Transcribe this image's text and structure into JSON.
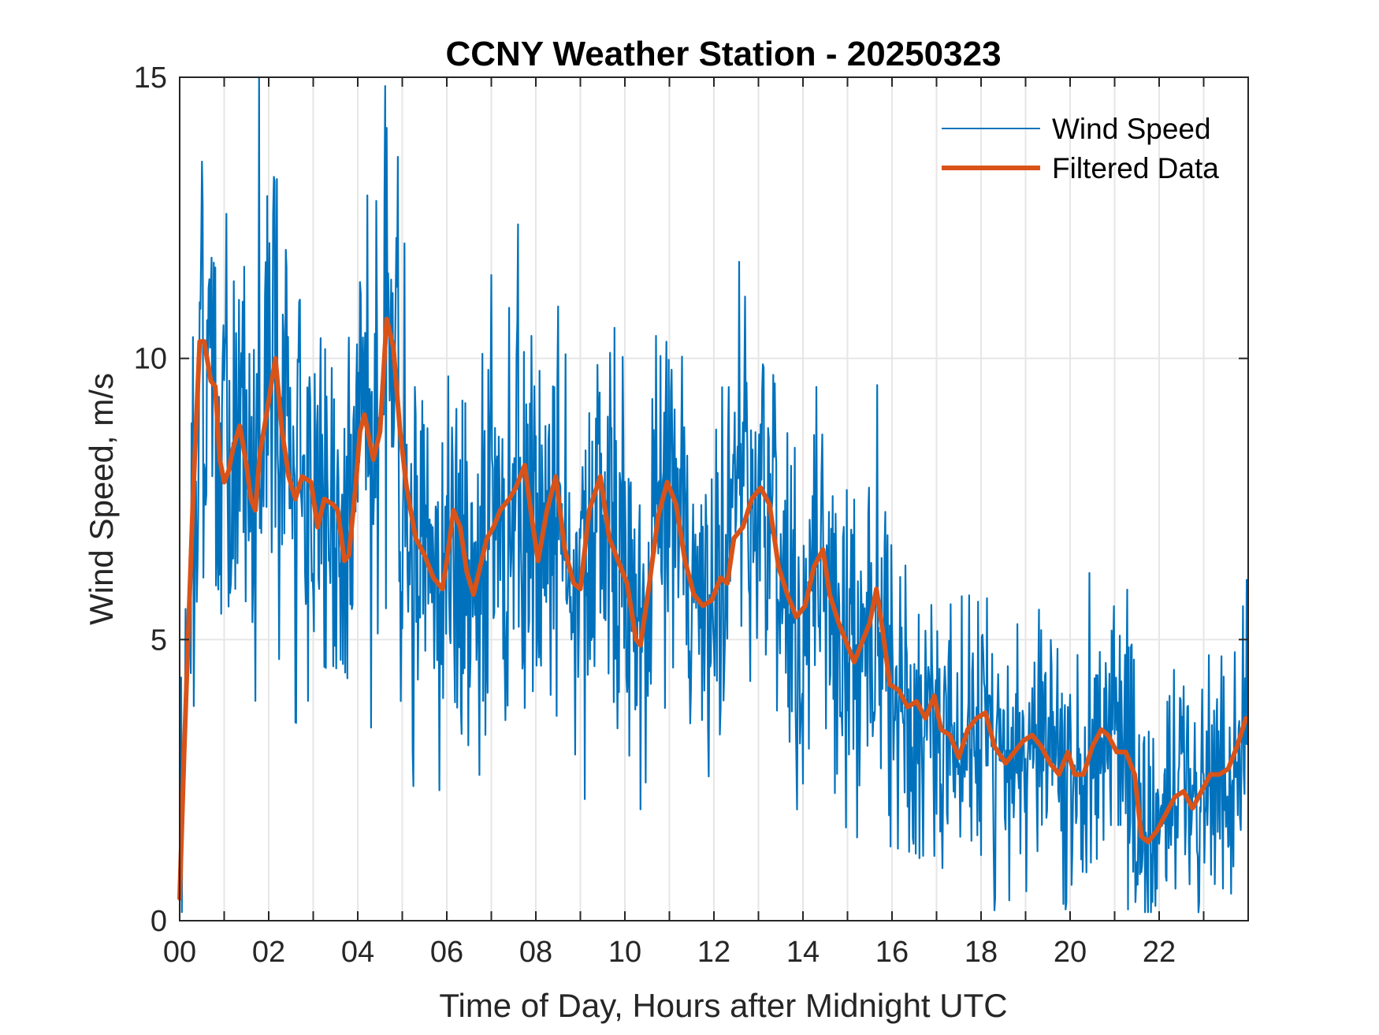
{
  "chart_data": {
    "type": "line",
    "title": "CCNY Weather Station - 20250323",
    "xlabel": "Time of Day, Hours after Midnight UTC",
    "ylabel": "Wind Speed, m/s",
    "xlim": [
      0,
      24
    ],
    "ylim": [
      0,
      15
    ],
    "x_ticks": [
      0,
      2,
      4,
      6,
      8,
      10,
      12,
      14,
      16,
      18,
      20,
      22
    ],
    "x_tick_labels": [
      "00",
      "02",
      "04",
      "06",
      "08",
      "10",
      "12",
      "14",
      "16",
      "18",
      "20",
      "22"
    ],
    "x_minor_ticks_every": 1,
    "y_ticks": [
      0,
      5,
      10,
      15
    ],
    "y_tick_labels": [
      "0",
      "5",
      "10",
      "15"
    ],
    "grid": true,
    "legend": {
      "placement": "top-right",
      "entries": [
        "Wind Speed",
        "Filtered Data"
      ]
    },
    "colors": {
      "wind_speed": "#0072BD",
      "filtered": "#D95319",
      "grid": "#e6e6e6",
      "axis": "#262626"
    },
    "series": [
      {
        "name": "Wind Speed",
        "note": "raw 1-minute samples, noisy about the filtered trend (approx. ±3 m/s); notable peaks ~15.0 at 01.8h, ~14.1 at 4.6h, ~11.1 at 12.7h",
        "noise_amplitude": 2.6,
        "peaks": [
          [
            1.78,
            15.0
          ],
          [
            4.65,
            14.1
          ],
          [
            0.5,
            13.5
          ],
          [
            12.7,
            11.1
          ],
          [
            7.4,
            10.9
          ],
          [
            10.7,
            10.4
          ],
          [
            21.3,
            0.2
          ],
          [
            19.9,
            0.2
          ]
        ]
      },
      {
        "name": "Filtered Data",
        "x": [
          0.0,
          0.1,
          0.3,
          0.45,
          0.55,
          0.7,
          0.8,
          0.9,
          1.0,
          1.1,
          1.2,
          1.35,
          1.5,
          1.6,
          1.7,
          1.8,
          1.95,
          2.15,
          2.3,
          2.45,
          2.6,
          2.75,
          2.95,
          3.1,
          3.25,
          3.45,
          3.55,
          3.7,
          3.8,
          3.95,
          4.05,
          4.15,
          4.25,
          4.35,
          4.5,
          4.65,
          4.8,
          4.95,
          5.1,
          5.3,
          5.5,
          5.7,
          5.9,
          6.0,
          6.15,
          6.3,
          6.45,
          6.6,
          6.75,
          6.9,
          7.05,
          7.2,
          7.4,
          7.55,
          7.75,
          7.9,
          8.05,
          8.25,
          8.45,
          8.65,
          8.85,
          9.0,
          9.2,
          9.45,
          9.65,
          9.85,
          10.05,
          10.25,
          10.35,
          10.55,
          10.75,
          10.95,
          11.15,
          11.35,
          11.55,
          11.75,
          11.95,
          12.15,
          12.3,
          12.45,
          12.65,
          12.85,
          13.05,
          13.25,
          13.45,
          13.65,
          13.85,
          14.05,
          14.25,
          14.45,
          14.6,
          14.8,
          15.0,
          15.15,
          15.35,
          15.5,
          15.65,
          15.8,
          15.95,
          16.15,
          16.35,
          16.55,
          16.75,
          16.95,
          17.1,
          17.3,
          17.5,
          17.7,
          17.9,
          18.1,
          18.3,
          18.55,
          18.75,
          18.95,
          19.15,
          19.35,
          19.55,
          19.75,
          19.95,
          20.1,
          20.3,
          20.5,
          20.7,
          20.85,
          21.05,
          21.25,
          21.45,
          21.6,
          21.75,
          21.95,
          22.15,
          22.35,
          22.55,
          22.75,
          22.95,
          23.15,
          23.35,
          23.55,
          23.75,
          23.95
        ],
        "y": [
          0.4,
          3.0,
          7.5,
          10.3,
          10.3,
          9.6,
          9.5,
          8.2,
          7.8,
          8.0,
          8.4,
          8.8,
          8.1,
          7.5,
          7.3,
          8.3,
          9.0,
          10.0,
          8.7,
          7.9,
          7.5,
          7.9,
          7.8,
          7.0,
          7.5,
          7.4,
          7.3,
          6.4,
          6.5,
          7.7,
          8.7,
          9.0,
          8.6,
          8.2,
          8.7,
          10.7,
          10.2,
          8.7,
          7.7,
          6.8,
          6.5,
          6.1,
          5.9,
          6.4,
          7.3,
          7.0,
          6.2,
          5.8,
          6.3,
          6.8,
          7.0,
          7.3,
          7.5,
          7.7,
          8.1,
          7.2,
          6.4,
          7.3,
          7.9,
          6.6,
          6.0,
          5.9,
          7.3,
          7.9,
          6.8,
          6.4,
          6.0,
          5.0,
          4.9,
          6.0,
          7.2,
          7.8,
          7.4,
          6.4,
          5.8,
          5.6,
          5.7,
          6.1,
          6.0,
          6.8,
          7.0,
          7.5,
          7.7,
          7.4,
          6.3,
          5.8,
          5.4,
          5.6,
          6.3,
          6.6,
          5.8,
          5.3,
          4.9,
          4.6,
          5.0,
          5.3,
          5.9,
          5.1,
          4.2,
          4.1,
          3.8,
          3.9,
          3.6,
          4.0,
          3.4,
          3.3,
          2.9,
          3.4,
          3.6,
          3.7,
          3.1,
          2.8,
          3.0,
          3.2,
          3.3,
          3.1,
          2.8,
          2.6,
          3.0,
          2.6,
          2.6,
          3.1,
          3.4,
          3.3,
          3.0,
          3.0,
          2.6,
          1.5,
          1.4,
          1.6,
          1.9,
          2.2,
          2.3,
          2.0,
          2.3,
          2.6,
          2.6,
          2.7,
          3.1,
          3.6
        ]
      }
    ]
  }
}
